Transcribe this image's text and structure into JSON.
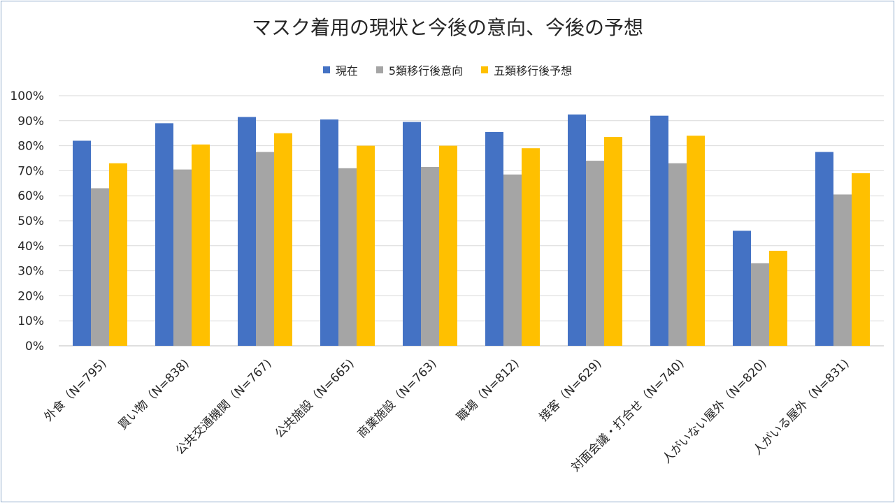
{
  "chart_data": {
    "type": "bar",
    "title": "マスク着用の現状と今後の意向、今後の予想",
    "categories": [
      "外食（N=795)",
      "買い物（N=838)",
      "公共交通機関（N=767)",
      "公共施設（N=665)",
      "商業施設（N=763)",
      "職場（N=812)",
      "接客（N=629)",
      "対面会議・打合せ（N=740)",
      "人がいない屋外（N=820)",
      "人がいる屋外（N=831)"
    ],
    "series": [
      {
        "name": "現在",
        "color": "#4472c4",
        "values": [
          82,
          89,
          91.5,
          90.5,
          89.5,
          85.5,
          92.5,
          92,
          46,
          77.5
        ]
      },
      {
        "name": "5類移行後意向",
        "color": "#a5a5a5",
        "values": [
          63,
          70.5,
          77.5,
          71,
          71.5,
          68.5,
          74,
          73,
          33,
          60.5
        ]
      },
      {
        "name": "五類移行後予想",
        "color": "#ffc000",
        "values": [
          73,
          80.5,
          85,
          80,
          80,
          79,
          83.5,
          84,
          38,
          69
        ]
      }
    ],
    "ylim": [
      0,
      100
    ],
    "yticks": [
      "0%",
      "10%",
      "20%",
      "30%",
      "40%",
      "50%",
      "60%",
      "70%",
      "80%",
      "90%",
      "100%"
    ],
    "grid": true,
    "legend_position": "top-center",
    "xlabel": "",
    "ylabel": ""
  }
}
